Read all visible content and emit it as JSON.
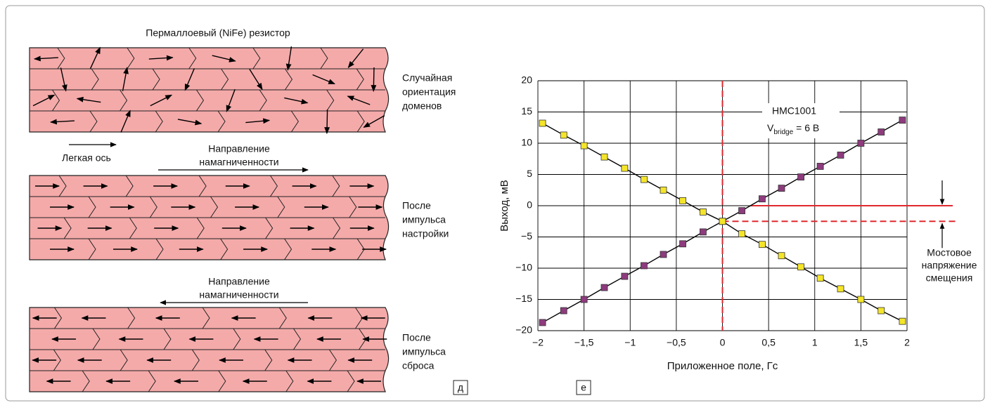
{
  "diagram": {
    "title": "Пермаллоевый (NiFe) резистор",
    "strips": [
      {
        "label_lines": [
          "Случайная",
          "ориентация",
          "доменов"
        ]
      },
      {
        "label_lines": [
          "После",
          "импульса",
          "настройки"
        ]
      },
      {
        "label_lines": [
          "После",
          "импульса",
          "сброса"
        ]
      }
    ],
    "easy_axis": "Легкая ось",
    "magnetization_labels": [
      [
        "Направление",
        "намагниченности"
      ],
      [
        "Направление",
        "намагниченности"
      ]
    ],
    "panel_label": "д"
  },
  "chart_data": {
    "type": "line",
    "xlabel": "Приложенное поле, Гс",
    "ylabel": "Выход, мВ",
    "x": [
      -1.95,
      -1.72,
      -1.5,
      -1.28,
      -1.06,
      -0.85,
      -0.64,
      -0.43,
      -0.21,
      0,
      0.21,
      0.43,
      0.64,
      0.85,
      1.06,
      1.28,
      1.5,
      1.72,
      1.95
    ],
    "series": [
      {
        "color": "#8e3b7e",
        "values": [
          -18.7,
          -16.8,
          -15.0,
          -13.1,
          -11.3,
          -9.6,
          -7.8,
          -6.1,
          -4.2,
          -2.5,
          -0.8,
          1.1,
          2.8,
          4.6,
          6.3,
          8.1,
          10.0,
          11.8,
          13.7
        ]
      },
      {
        "color": "#f5e52a",
        "values": [
          13.2,
          11.3,
          9.6,
          7.8,
          6.0,
          4.2,
          2.5,
          0.8,
          -1.0,
          -2.5,
          -4.5,
          -6.2,
          -8.0,
          -9.8,
          -11.6,
          -13.3,
          -15.0,
          -16.8,
          -18.5
        ]
      }
    ],
    "xlim": [
      -2,
      2
    ],
    "xticks": [
      {
        "value": -2,
        "label": "−2"
      },
      {
        "value": -1.5,
        "label": "−1,5"
      },
      {
        "value": -1,
        "label": "−1"
      },
      {
        "value": -0.5,
        "label": "−0,5"
      },
      0,
      {
        "value": 0.5,
        "label": "0,5"
      },
      1,
      {
        "value": 1.5,
        "label": "1,5"
      },
      2
    ],
    "ylim": [
      -20,
      20
    ],
    "yticks": [
      {
        "value": -20,
        "label": "−20"
      },
      {
        "value": -15,
        "label": "−15"
      },
      {
        "value": -10,
        "label": "−10"
      },
      {
        "value": -5,
        "label": "−5"
      },
      0,
      5,
      10,
      15,
      20
    ],
    "grid": true,
    "reference_lines": {
      "x": 0,
      "offset": -2.5,
      "zero": 0,
      "color": "#e0282e"
    },
    "annotations": {
      "device": "HMC1001",
      "v_symbol": "V",
      "v_subscript": "bridge",
      "v_value": "= 6 В",
      "offset_label": [
        "Мостовое",
        "напряжение",
        "смещения"
      ],
      "panel_label": "е"
    }
  }
}
